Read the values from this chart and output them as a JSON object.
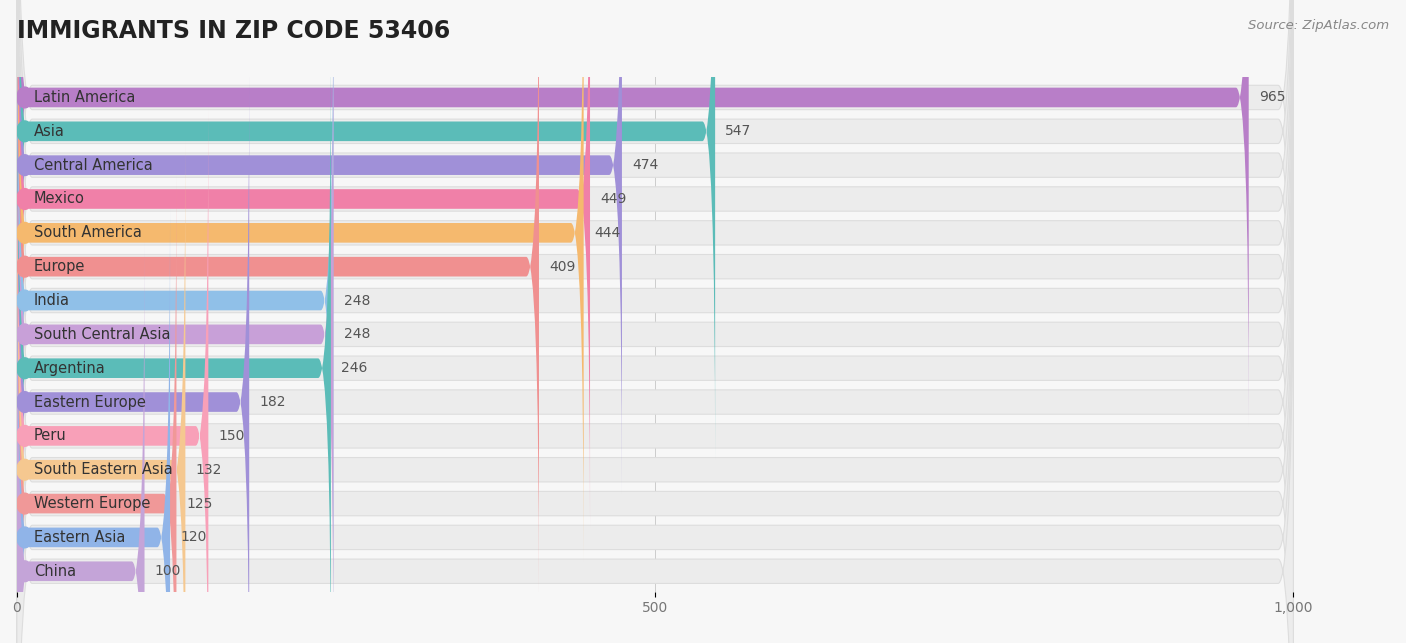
{
  "title": "IMMIGRANTS IN ZIP CODE 53406",
  "source": "Source: ZipAtlas.com",
  "categories": [
    "Latin America",
    "Asia",
    "Central America",
    "Mexico",
    "South America",
    "Europe",
    "India",
    "South Central Asia",
    "Argentina",
    "Eastern Europe",
    "Peru",
    "South Eastern Asia",
    "Western Europe",
    "Eastern Asia",
    "China"
  ],
  "values": [
    965,
    547,
    474,
    449,
    444,
    409,
    248,
    248,
    246,
    182,
    150,
    132,
    125,
    120,
    100
  ],
  "bar_colors": [
    "#b87ec8",
    "#5bbcb8",
    "#a090d8",
    "#f080a8",
    "#f5b96e",
    "#f09090",
    "#90c0e8",
    "#c8a0d8",
    "#5bbcb8",
    "#a090d8",
    "#f8a0b8",
    "#f5c890",
    "#f09898",
    "#90b4e8",
    "#c4a4d8"
  ],
  "background_color": "#f7f7f7",
  "bar_bg_color": "#ececec",
  "bar_bg_edge_color": "#dddddd",
  "xlim_max": 1000,
  "xticks": [
    0,
    500,
    1000
  ],
  "xtick_labels": [
    "0",
    "500",
    "1,000"
  ],
  "title_fontsize": 17,
  "label_fontsize": 10.5,
  "value_fontsize": 10,
  "source_fontsize": 9.5
}
